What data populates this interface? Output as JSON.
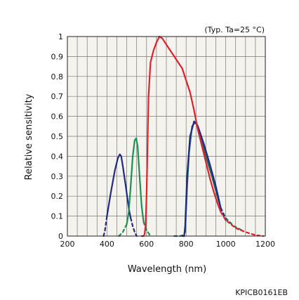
{
  "chart_data": {
    "type": "line",
    "xlabel": "Wavelength (nm)",
    "ylabel": "Relative sensitivity",
    "annotation": "(Typ. Ta=25 °C)",
    "figure_code": "KPICB0161EB",
    "xlim": [
      200,
      1200
    ],
    "ylim": [
      0,
      1
    ],
    "x_ticks": [
      "200",
      "400",
      "600",
      "800",
      "1000",
      "1200"
    ],
    "y_ticks": [
      "0",
      "0.1",
      "0.2",
      "0.3",
      "0.4",
      "0.5",
      "0.6",
      "0.7",
      "0.8",
      "0.9",
      "1"
    ],
    "grid": true,
    "plot_background": "#f5f3ed",
    "series": [
      {
        "color": "#1f2a80",
        "solid": [
          [
            400,
            0.1
          ],
          [
            420,
            0.22
          ],
          [
            440,
            0.33
          ],
          [
            455,
            0.39
          ],
          [
            465,
            0.41
          ],
          [
            472,
            0.4
          ],
          [
            480,
            0.35
          ],
          [
            495,
            0.25
          ],
          [
            510,
            0.14
          ],
          [
            520,
            0.09
          ]
        ],
        "dashed": [
          [
            383,
            0.0
          ],
          [
            390,
            0.03
          ],
          [
            400,
            0.1
          ]
        ],
        "dashed2": [
          [
            520,
            0.09
          ],
          [
            530,
            0.05
          ],
          [
            540,
            0.02
          ],
          [
            550,
            0.0
          ]
        ]
      },
      {
        "color": "#1c9150",
        "solid": [
          [
            500,
            0.06
          ],
          [
            510,
            0.12
          ],
          [
            520,
            0.25
          ],
          [
            530,
            0.4
          ],
          [
            540,
            0.48
          ],
          [
            548,
            0.49
          ],
          [
            555,
            0.45
          ],
          [
            565,
            0.3
          ],
          [
            575,
            0.15
          ],
          [
            585,
            0.07
          ]
        ],
        "dashed": [
          [
            460,
            0.0
          ],
          [
            480,
            0.02
          ],
          [
            500,
            0.06
          ]
        ],
        "dashed2": [
          [
            585,
            0.07
          ],
          [
            600,
            0.03
          ],
          [
            620,
            0.0
          ]
        ]
      },
      {
        "color": "#1f6e5a",
        "solid": [
          [
            795,
            0.02
          ],
          [
            805,
            0.25
          ],
          [
            815,
            0.42
          ],
          [
            830,
            0.55
          ],
          [
            845,
            0.57
          ],
          [
            860,
            0.55
          ],
          [
            880,
            0.48
          ],
          [
            900,
            0.4
          ],
          [
            930,
            0.3
          ],
          [
            960,
            0.19
          ],
          [
            975,
            0.14
          ]
        ],
        "dashed": [
          [
            740,
            0.0
          ],
          [
            770,
            0.0
          ],
          [
            785,
            0.005
          ],
          [
            795,
            0.02
          ]
        ],
        "dashed2": [
          [
            975,
            0.14
          ],
          [
            1000,
            0.09
          ],
          [
            1040,
            0.05
          ],
          [
            1080,
            0.03
          ]
        ]
      },
      {
        "color": "#1f2a80",
        "solid": [
          [
            790,
            0.0
          ],
          [
            795,
            0.05
          ],
          [
            805,
            0.3
          ],
          [
            820,
            0.5
          ],
          [
            840,
            0.575
          ],
          [
            855,
            0.56
          ],
          [
            870,
            0.52
          ],
          [
            890,
            0.46
          ],
          [
            920,
            0.36
          ],
          [
            950,
            0.25
          ],
          [
            975,
            0.14
          ]
        ],
        "dashed": [
          [
            780,
            0.0
          ],
          [
            790,
            0.0
          ]
        ],
        "dashed2": [
          [
            975,
            0.14
          ],
          [
            1000,
            0.08
          ]
        ]
      },
      {
        "color": "#e0202a",
        "solid": [
          [
            590,
            0.01
          ],
          [
            595,
            0.05
          ],
          [
            600,
            0.2
          ],
          [
            605,
            0.45
          ],
          [
            610,
            0.7
          ],
          [
            620,
            0.87
          ],
          [
            635,
            0.93
          ],
          [
            650,
            0.97
          ],
          [
            665,
            1.0
          ],
          [
            680,
            0.99
          ],
          [
            700,
            0.96
          ],
          [
            720,
            0.93
          ],
          [
            740,
            0.9
          ],
          [
            760,
            0.87
          ],
          [
            780,
            0.84
          ],
          [
            800,
            0.78
          ],
          [
            820,
            0.72
          ],
          [
            840,
            0.63
          ],
          [
            860,
            0.53
          ],
          [
            880,
            0.45
          ],
          [
            900,
            0.37
          ],
          [
            920,
            0.29
          ],
          [
            940,
            0.22
          ],
          [
            960,
            0.16
          ],
          [
            975,
            0.12
          ]
        ],
        "dashed": [
          [
            575,
            0.0
          ],
          [
            585,
            0.0
          ],
          [
            590,
            0.01
          ]
        ],
        "dashed2": [
          [
            975,
            0.12
          ],
          [
            1000,
            0.08
          ],
          [
            1050,
            0.04
          ],
          [
            1100,
            0.02
          ],
          [
            1150,
            0.005
          ],
          [
            1190,
            0.0
          ]
        ]
      }
    ]
  }
}
